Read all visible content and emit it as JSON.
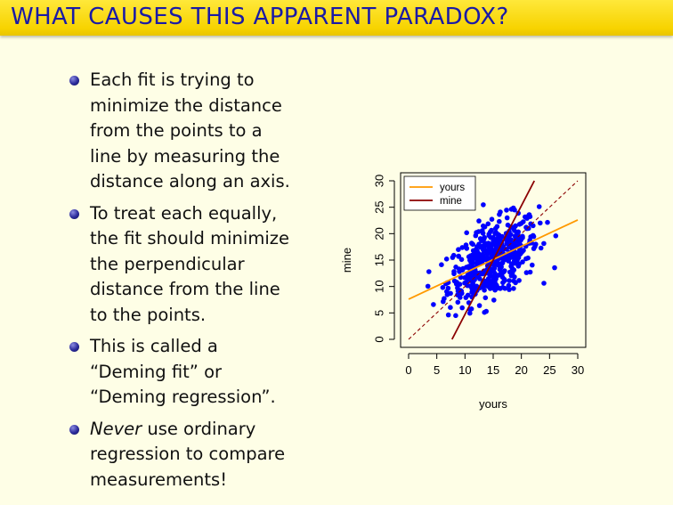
{
  "slide": {
    "title": "WHAT CAUSES THIS APPARENT PARADOX?",
    "bullets": [
      {
        "lines": [
          "Each fit is trying to",
          "minimize the distance",
          "from the points to a",
          "line by measuring the",
          "distance along an axis."
        ]
      },
      {
        "lines": [
          "To treat each equally,",
          "the fit should minimize",
          "the perpendicular",
          "distance from the line",
          "to the points."
        ]
      },
      {
        "lines": [
          "This is called a",
          "“Deming fit” or",
          "“Deming regression”."
        ]
      },
      {
        "lines": [
          "Never use ordinary",
          "regression to compare",
          "measurements!"
        ],
        "emphasis_word": "Never"
      }
    ]
  },
  "chart_data": {
    "type": "scatter",
    "xlabel": "yours",
    "ylabel": "mine",
    "xlim": [
      0,
      30
    ],
    "ylim": [
      0,
      30
    ],
    "xticks": [
      0,
      5,
      10,
      15,
      20,
      25,
      30
    ],
    "yticks": [
      0,
      5,
      10,
      15,
      20,
      25,
      30
    ],
    "point_color": "#0000ff",
    "point_count_approx": 500,
    "point_cloud": {
      "center": [
        15,
        15
      ],
      "sd": [
        4,
        4
      ],
      "correlation": 0.5,
      "approximate": true
    },
    "series": [
      {
        "name": "yours",
        "type": "line",
        "color": "#ff9900",
        "x": [
          0,
          30
        ],
        "y": [
          7.6,
          22.6
        ]
      },
      {
        "name": "mine",
        "type": "line",
        "color": "#8b0000",
        "x": [
          7.7,
          22.3
        ],
        "y": [
          0,
          30
        ]
      }
    ],
    "reference_line": {
      "type": "line",
      "style": "dashed",
      "color": "#8b0000",
      "x": [
        0,
        30
      ],
      "y": [
        0,
        30
      ]
    },
    "legend": {
      "placement": "top-left",
      "entries": [
        "yours",
        "mine"
      ]
    },
    "grid": false
  }
}
